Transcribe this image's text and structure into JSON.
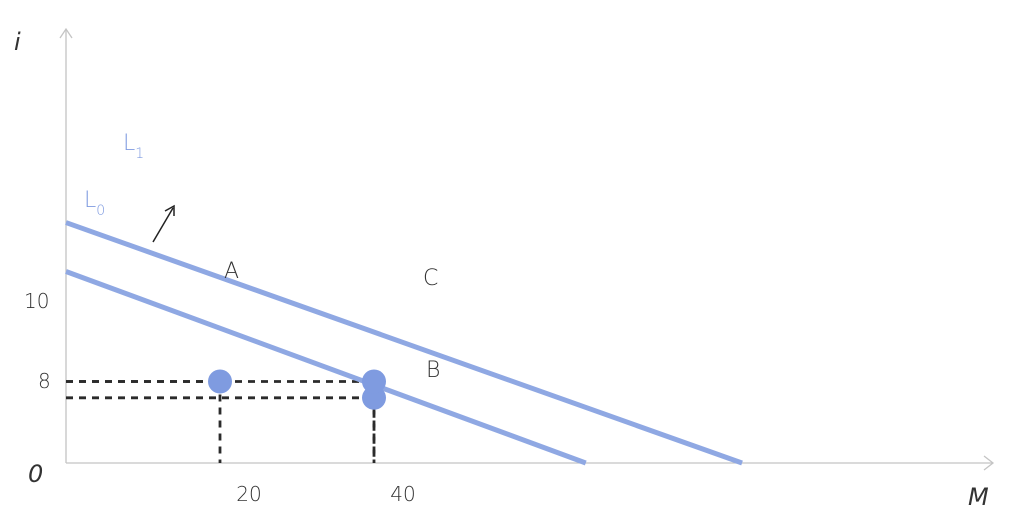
{
  "chart_data": {
    "type": "line",
    "xlabel": "M",
    "ylabel": "i",
    "origin_label": "0",
    "x_ticks": [
      "20",
      "40"
    ],
    "y_ticks": [
      "10",
      "8"
    ],
    "series": [
      {
        "name": "L",
        "subscript": "0",
        "points": [
          [
            0,
            23.5
          ],
          [
            67.5,
            0
          ]
        ]
      },
      {
        "name": "L",
        "subscript": "1",
        "points": [
          [
            0,
            29.5
          ],
          [
            87.8,
            0
          ]
        ]
      }
    ],
    "points": [
      {
        "label": "A",
        "x": 20,
        "y": 10
      },
      {
        "label": "B",
        "x": 40,
        "y": 8
      },
      {
        "label": "C",
        "x": 40,
        "y": 10
      }
    ],
    "guides": [
      {
        "x": 20,
        "y": 10
      },
      {
        "x": 40,
        "y": 10
      },
      {
        "x": 40,
        "y": 8
      }
    ],
    "shift_arrow": "up-right",
    "colors": {
      "curve": "#8fa8e3",
      "point": "#7f9be0",
      "guide": "#2b2b2b",
      "axis": "#c4c4c4"
    }
  }
}
